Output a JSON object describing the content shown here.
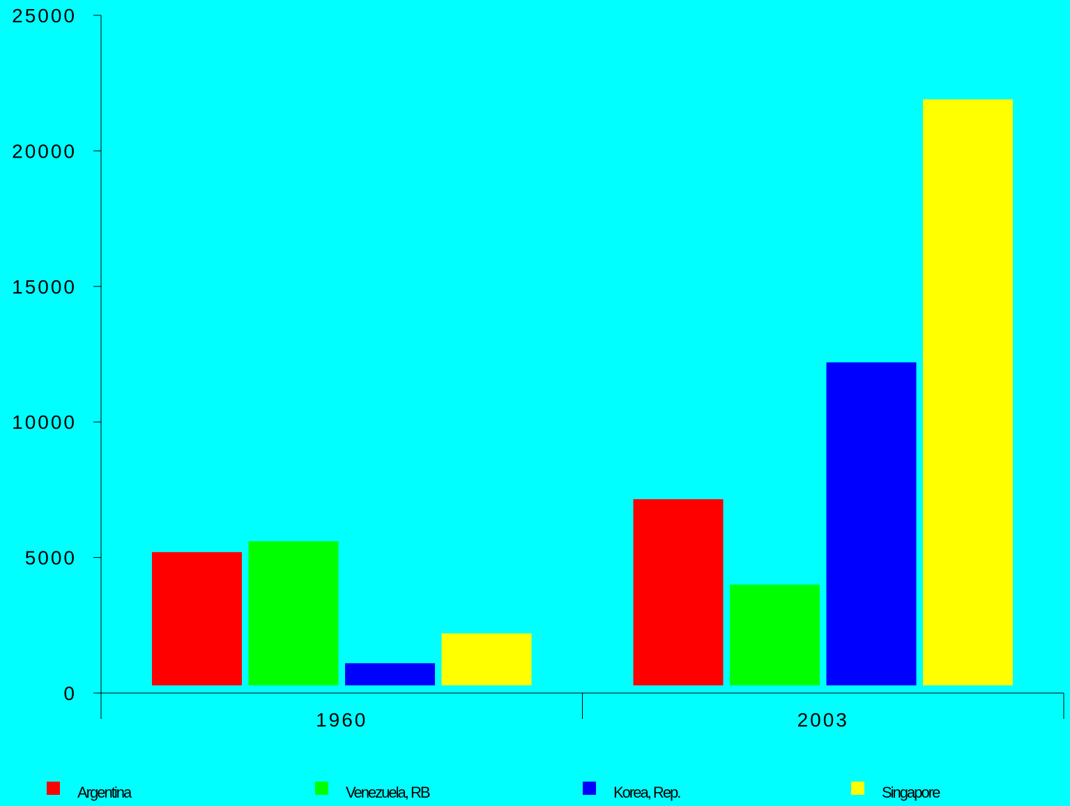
{
  "chart_data": {
    "type": "bar",
    "categories": [
      "1960",
      "2003"
    ],
    "series": [
      {
        "name": "Argentina",
        "color": "#FF0000",
        "values": [
          5200,
          7150
        ]
      },
      {
        "name": "Venezuela, RB",
        "color": "#00FF00",
        "values": [
          5600,
          4000
        ]
      },
      {
        "name": "Korea, Rep.",
        "color": "#0000FF",
        "values": [
          1100,
          12200
        ]
      },
      {
        "name": "Singapore",
        "color": "#FFFF00",
        "values": [
          2200,
          21900
        ]
      }
    ],
    "yticks": [
      "0",
      "5000",
      "10000",
      "15000",
      "20000",
      "25000"
    ],
    "ylim": [
      0,
      25000
    ],
    "title": "",
    "xlabel": "",
    "ylabel": "",
    "grid": false,
    "legend_position": "bottom",
    "background": "#00FFFF"
  }
}
